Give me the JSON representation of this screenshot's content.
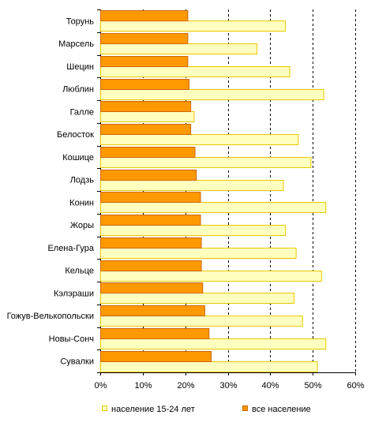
{
  "chart_data": {
    "type": "bar",
    "orientation": "horizontal",
    "title": "",
    "xlabel": "",
    "ylabel": "",
    "xlim": [
      0,
      60
    ],
    "x_ticks": [
      "0%",
      "10%",
      "20%",
      "30%",
      "40%",
      "50%",
      "60%"
    ],
    "grid": "vertical dashed",
    "legend_position": "bottom",
    "categories": [
      "Торунь",
      "Марсель",
      "Шецин",
      "Люблин",
      "Галле",
      "Белосток",
      "Кошице",
      "Лодзь",
      "Конин",
      "Жоры",
      "Елена-Гура",
      "Кельце",
      "Кэлэраши",
      "Гожув-Велькопольски",
      "Новы-Сонч",
      "Сувалки"
    ],
    "series": [
      {
        "name": "население 15-24 лет",
        "color": "#FFFFC0",
        "border": "#E8C800",
        "values": [
          43.5,
          36.8,
          44.5,
          52.5,
          22.0,
          46.5,
          49.5,
          43.0,
          53.0,
          43.5,
          46.0,
          52.0,
          45.5,
          47.5,
          53.0,
          51.0
        ]
      },
      {
        "name": "все население",
        "color": "#FF9900",
        "border": "#CC6600",
        "values": [
          20.5,
          20.5,
          20.5,
          20.8,
          21.2,
          21.2,
          22.2,
          22.5,
          23.5,
          23.5,
          23.7,
          23.7,
          24.0,
          24.5,
          25.5,
          26.0
        ]
      }
    ]
  }
}
